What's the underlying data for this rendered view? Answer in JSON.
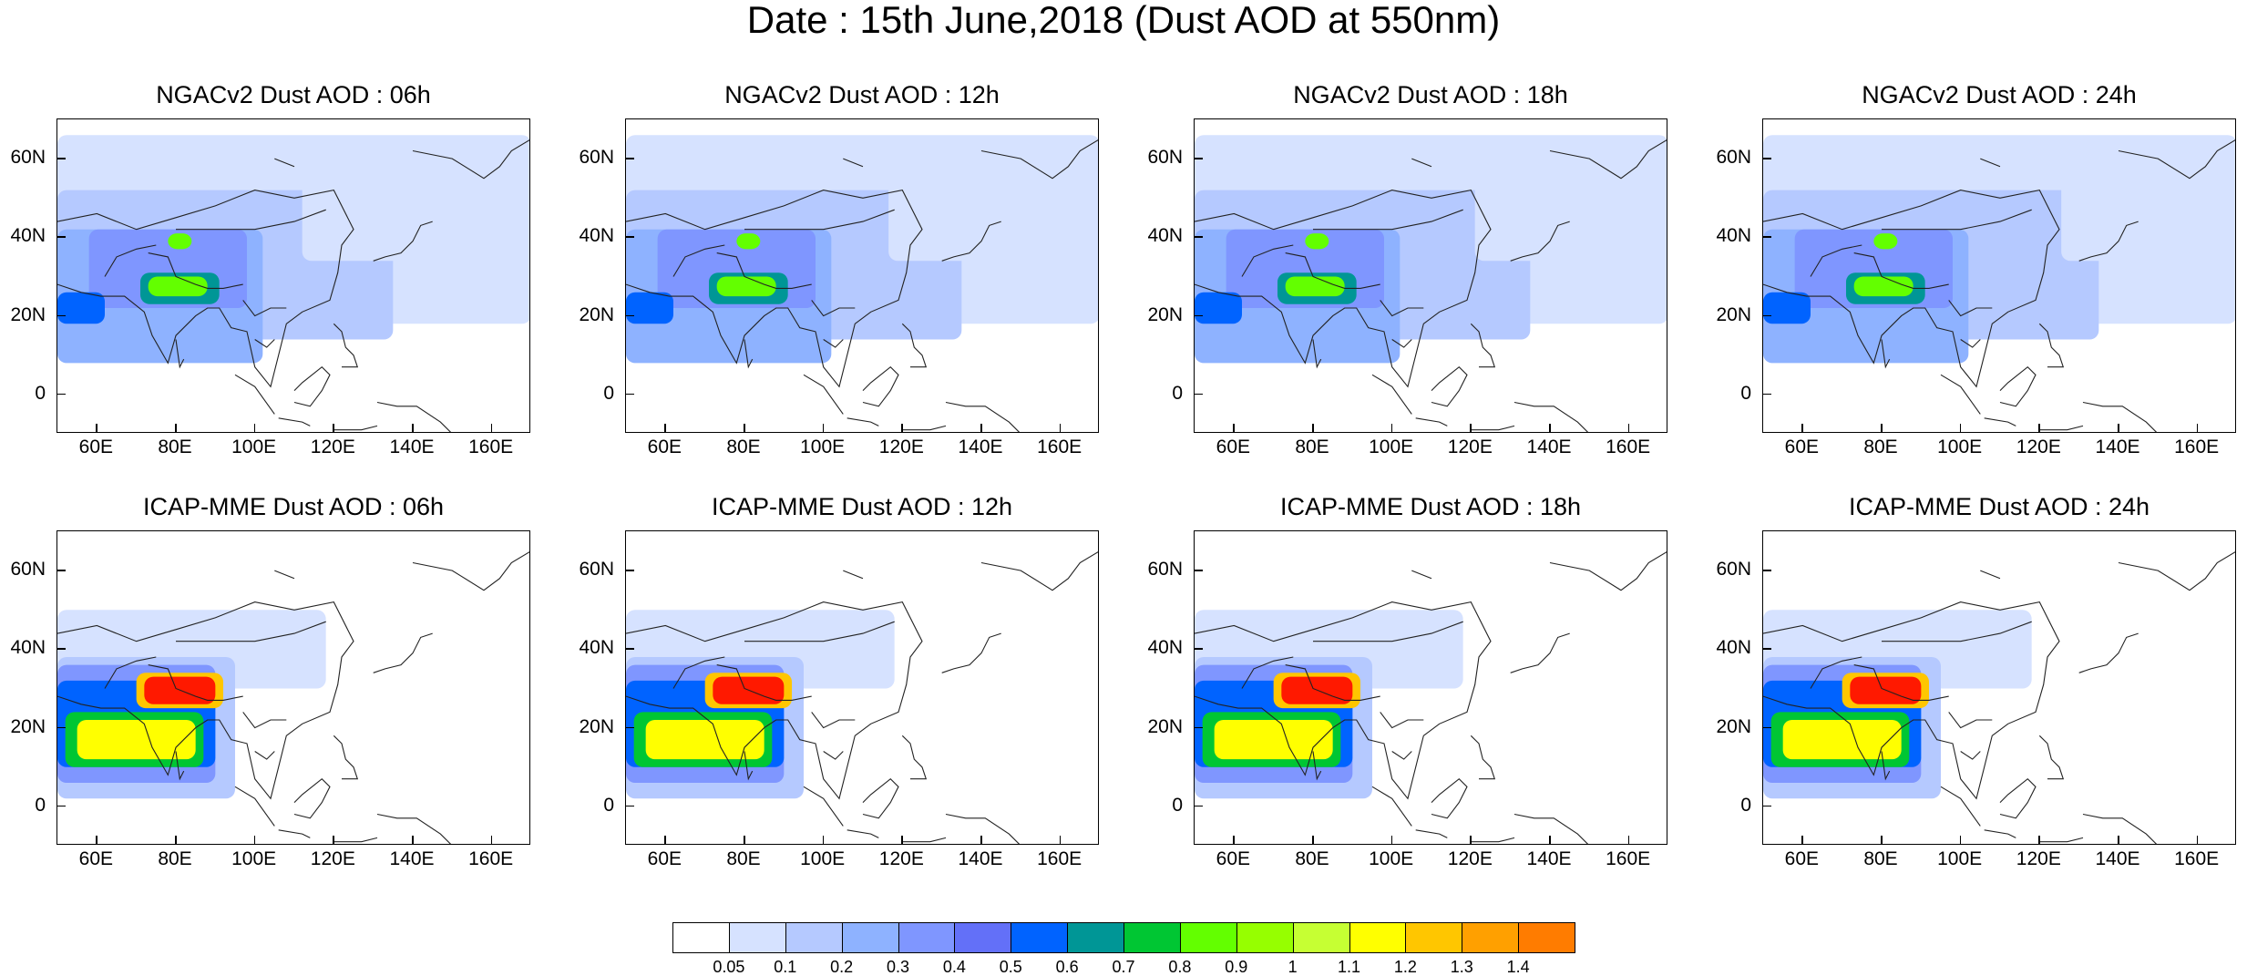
{
  "title": "Date : 15th June,2018 (Dust AOD at 550nm)",
  "axes": {
    "y_ticks": [
      "60N",
      "40N",
      "20N",
      "0"
    ],
    "x_ticks": [
      "60E",
      "80E",
      "100E",
      "120E",
      "140E",
      "160E"
    ],
    "lon_range": [
      50,
      170
    ],
    "lat_range": [
      -10,
      70
    ]
  },
  "panels": [
    {
      "title": "NGACv2 Dust AOD : 06h",
      "model": "NGACv2",
      "lead": "06h"
    },
    {
      "title": "NGACv2 Dust AOD : 12h",
      "model": "NGACv2",
      "lead": "12h"
    },
    {
      "title": "NGACv2 Dust AOD : 18h",
      "model": "NGACv2",
      "lead": "18h"
    },
    {
      "title": "NGACv2 Dust AOD : 24h",
      "model": "NGACv2",
      "lead": "24h"
    },
    {
      "title": "ICAP-MME Dust AOD : 06h",
      "model": "ICAP-MME",
      "lead": "06h"
    },
    {
      "title": "ICAP-MME Dust AOD : 12h",
      "model": "ICAP-MME",
      "lead": "12h"
    },
    {
      "title": "ICAP-MME Dust AOD : 18h",
      "model": "ICAP-MME",
      "lead": "18h"
    },
    {
      "title": "ICAP-MME Dust AOD : 24h",
      "model": "ICAP-MME",
      "lead": "24h"
    }
  ],
  "colorbar": {
    "labels": [
      "0.05",
      "0.1",
      "0.2",
      "0.3",
      "0.4",
      "0.5",
      "0.6",
      "0.7",
      "0.8",
      "0.9",
      "1",
      "1.1",
      "1.2",
      "1.3",
      "1.4"
    ],
    "colors": [
      "#ffffff",
      "#d6e2ff",
      "#b5c9ff",
      "#8eb2ff",
      "#7f96ff",
      "#6370f8",
      "#0063ff",
      "#009696",
      "#00c633",
      "#63ff00",
      "#96ff00",
      "#c6ff33",
      "#ffff00",
      "#ffc600",
      "#ffa000",
      "#ff7c00",
      "#ff1900"
    ]
  }
}
